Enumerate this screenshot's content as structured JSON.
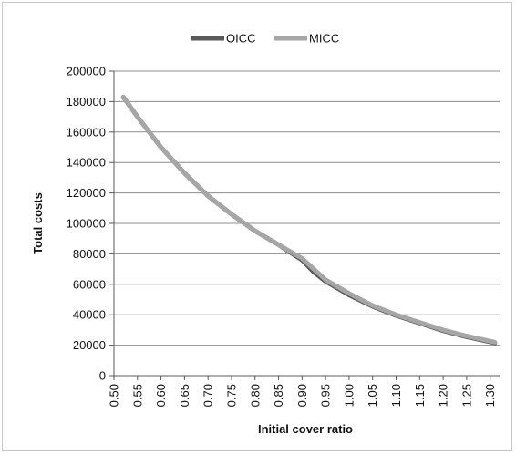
{
  "chart_data": {
    "type": "line",
    "xlabel": "Initial cover ratio",
    "ylabel": "Total costs",
    "legend_position": "top-center",
    "grid": "horizontal",
    "ylim": [
      0,
      200000
    ],
    "yticks": [
      "0",
      "20000",
      "40000",
      "60000",
      "80000",
      "100000",
      "120000",
      "140000",
      "160000",
      "180000",
      "200000"
    ],
    "ytick_values": [
      0,
      20000,
      40000,
      60000,
      80000,
      100000,
      120000,
      140000,
      160000,
      180000,
      200000
    ],
    "xticks": [
      "0.50",
      "0.55",
      "0.60",
      "0.65",
      "0.70",
      "0.75",
      "0.80",
      "0.85",
      "0.90",
      "0.95",
      "1.00",
      "1.05",
      "1.10",
      "1.15",
      "1.20",
      "1.25",
      "1.30"
    ],
    "xlim": [
      0.5,
      1.32
    ],
    "series": [
      {
        "name": "OICC",
        "color": "#595959",
        "x": [
          0.52,
          0.55,
          0.6,
          0.65,
          0.7,
          0.75,
          0.8,
          0.85,
          0.9,
          0.925,
          0.95,
          1.0,
          1.05,
          1.1,
          1.15,
          1.2,
          1.25,
          1.31
        ],
        "y": [
          183000,
          170000,
          150000,
          133000,
          118000,
          106000,
          95000,
          86000,
          76000,
          68000,
          62000,
          53000,
          45500,
          39500,
          34500,
          29500,
          25500,
          21500
        ]
      },
      {
        "name": "MICC",
        "color": "#a6a6a6",
        "x": [
          0.52,
          0.55,
          0.6,
          0.65,
          0.7,
          0.75,
          0.8,
          0.85,
          0.9,
          0.925,
          0.95,
          1.0,
          1.05,
          1.1,
          1.15,
          1.2,
          1.25,
          1.31
        ],
        "y": [
          183000,
          170000,
          150000,
          133000,
          118000,
          106000,
          95000,
          86000,
          77000,
          70000,
          63000,
          54000,
          46000,
          40000,
          35000,
          30000,
          26000,
          22000
        ]
      }
    ]
  }
}
